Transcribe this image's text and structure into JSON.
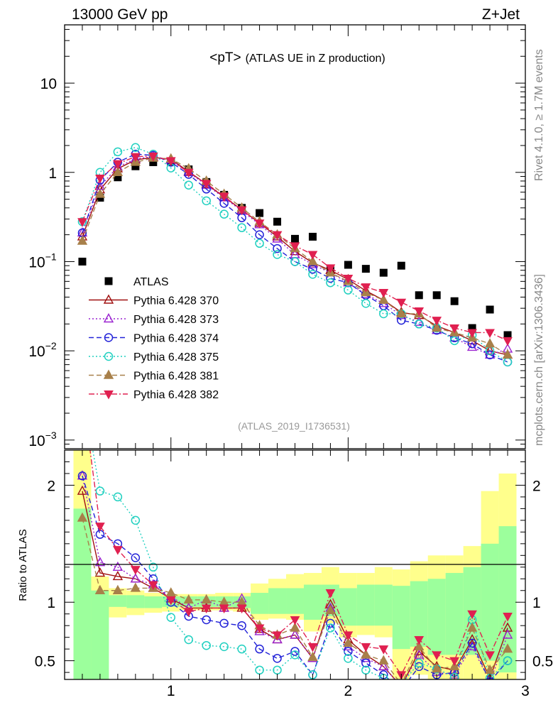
{
  "header": {
    "left": "13000 GeV pp",
    "right": "Z+Jet"
  },
  "side_text": {
    "rivet": "Rivet 4.1.0, ≥ 1.7M events",
    "mcplots": "mcplots.cern.ch [arXiv:1306.3436]"
  },
  "chart_data": [
    {
      "type": "line",
      "panel": "main",
      "title_main": "<pT>",
      "title_sub": "(ATLAS UE in Z production)",
      "analysis_tag": "(ATLAS_2019_I1736531)",
      "yscale": "log",
      "ylim": [
        0.0008,
        45
      ],
      "xlim": [
        0.4,
        3.0
      ],
      "yticks": [
        {
          "value": 10,
          "label": "10"
        },
        {
          "value": 1,
          "label": "1"
        },
        {
          "value": 0.1,
          "label": "10",
          "exp": "−1"
        },
        {
          "value": 0.01,
          "label": "10",
          "exp": "−2"
        },
        {
          "value": 0.001,
          "label": "10",
          "exp": "−3"
        }
      ],
      "x": [
        0.5,
        0.6,
        0.7,
        0.8,
        0.9,
        1.0,
        1.1,
        1.2,
        1.3,
        1.4,
        1.5,
        1.6,
        1.7,
        1.8,
        1.9,
        2.0,
        2.1,
        2.2,
        2.3,
        2.4,
        2.5,
        2.6,
        2.7,
        2.8,
        2.9
      ],
      "legend_position": "middle-left",
      "series": [
        {
          "name": "ATLAS",
          "color": "#000000",
          "marker": "square",
          "line": "none",
          "values": [
            0.1,
            0.52,
            0.88,
            1.17,
            1.3,
            1.32,
            1.08,
            0.78,
            0.56,
            0.4,
            0.35,
            0.28,
            0.18,
            0.19,
            0.08,
            0.092,
            0.083,
            0.075,
            0.09,
            0.042,
            0.042,
            0.036,
            0.018,
            0.029,
            0.015
          ]
        },
        {
          "name": "Pythia 6.428 370",
          "color": "#a01010",
          "marker": "triangle-open",
          "line": "solid",
          "values": [
            0.19,
            0.64,
            1.1,
            1.38,
            1.47,
            1.4,
            1.02,
            0.74,
            0.53,
            0.38,
            0.27,
            0.19,
            0.13,
            0.097,
            0.08,
            0.063,
            0.047,
            0.037,
            0.027,
            0.025,
            0.019,
            0.016,
            0.013,
            0.01,
            0.009
          ]
        },
        {
          "name": "Pythia 6.428 373",
          "color": "#9a22d0",
          "marker": "triangle-open",
          "line": "dotted",
          "values": [
            0.21,
            0.7,
            1.15,
            1.42,
            1.5,
            1.38,
            1.0,
            0.72,
            0.52,
            0.37,
            0.26,
            0.18,
            0.12,
            0.093,
            0.075,
            0.058,
            0.043,
            0.034,
            0.025,
            0.021,
            0.017,
            0.014,
            0.011,
            0.009,
            0.0105
          ]
        },
        {
          "name": "Pythia 6.428 374",
          "color": "#2222d8",
          "marker": "circle-open",
          "line": "dashed",
          "values": [
            0.21,
            0.82,
            1.3,
            1.6,
            1.55,
            1.3,
            0.95,
            0.65,
            0.45,
            0.31,
            0.2,
            0.14,
            0.1,
            0.082,
            0.065,
            0.058,
            0.042,
            0.032,
            0.022,
            0.02,
            0.017,
            0.014,
            0.012,
            0.009,
            0.0075
          ]
        },
        {
          "name": "Pythia 6.428 375",
          "color": "#20d0c0",
          "marker": "circle-open",
          "line": "dotted",
          "values": [
            0.28,
            1.0,
            1.7,
            1.9,
            1.6,
            1.12,
            0.72,
            0.48,
            0.34,
            0.24,
            0.16,
            0.12,
            0.1,
            0.072,
            0.058,
            0.048,
            0.034,
            0.026,
            0.026,
            0.02,
            0.018,
            0.013,
            0.015,
            0.01,
            0.0075
          ]
        },
        {
          "name": "Pythia 6.428 381",
          "color": "#a8804a",
          "marker": "triangle-filled",
          "line": "dashed",
          "values": [
            0.17,
            0.57,
            1.0,
            1.3,
            1.45,
            1.42,
            1.1,
            0.8,
            0.57,
            0.4,
            0.28,
            0.2,
            0.14,
            0.1,
            0.075,
            0.06,
            0.045,
            0.037,
            0.026,
            0.026,
            0.018,
            0.016,
            0.014,
            0.012,
            0.009
          ]
        },
        {
          "name": "Pythia 6.428 382",
          "color": "#e02050",
          "marker": "triangle-down-filled",
          "line": "dashdot",
          "values": [
            0.28,
            0.86,
            1.25,
            1.5,
            1.52,
            1.35,
            1.0,
            0.75,
            0.54,
            0.38,
            0.27,
            0.2,
            0.15,
            0.12,
            0.085,
            0.065,
            0.052,
            0.045,
            0.035,
            0.028,
            0.022,
            0.018,
            0.016,
            0.016,
            0.013
          ]
        }
      ]
    },
    {
      "type": "line",
      "panel": "ratio",
      "ylabel": "Ratio to ATLAS",
      "xlabel": "",
      "ylim": [
        0.34,
        2.3
      ],
      "xlim": [
        0.4,
        3.0
      ],
      "yticks": [
        {
          "value": 2,
          "label": "2"
        },
        {
          "value": 1,
          "label": "1"
        },
        {
          "value": 0.5,
          "label": "0.5"
        }
      ],
      "xticks": [
        {
          "value": 1,
          "label": "1"
        },
        {
          "value": 2,
          "label": "2"
        },
        {
          "value": 3,
          "label": "3"
        }
      ],
      "bands": {
        "yellow": {
          "color": "#ffff8c",
          "lower": [
            0.2,
            0.77,
            0.87,
            0.89,
            0.91,
            0.92,
            0.93,
            0.93,
            0.93,
            0.92,
            0.85,
            0.86,
            0.85,
            0.75,
            0.82,
            0.7,
            0.72,
            0.7,
            0.3,
            0.38,
            0.3,
            0.3,
            0.3,
            0.3,
            0.3
          ],
          "upper": [
            2.4,
            1.22,
            1.12,
            1.1,
            1.08,
            1.07,
            1.07,
            1.07,
            1.08,
            1.08,
            1.16,
            1.2,
            1.24,
            1.25,
            1.3,
            1.25,
            1.25,
            1.3,
            1.28,
            1.35,
            1.4,
            1.4,
            1.48,
            1.95,
            2.1
          ]
        },
        "green": {
          "color": "#9cff9c",
          "lower": [
            0.2,
            0.2,
            0.96,
            0.95,
            0.95,
            0.96,
            0.96,
            0.96,
            0.96,
            0.95,
            0.9,
            0.9,
            0.9,
            0.85,
            0.88,
            0.8,
            0.8,
            0.8,
            0.6,
            0.62,
            0.55,
            0.55,
            0.55,
            0.5,
            0.4
          ],
          "upper": [
            1.8,
            1.1,
            1.06,
            1.06,
            1.05,
            1.05,
            1.05,
            1.05,
            1.05,
            1.05,
            1.08,
            1.12,
            1.12,
            1.15,
            1.15,
            1.12,
            1.15,
            1.15,
            1.14,
            1.18,
            1.2,
            1.25,
            1.3,
            1.5,
            1.65
          ]
        }
      },
      "series": [
        {
          "name": "Pythia 6.428 370",
          "color": "#a01010",
          "values": [
            1.95,
            1.25,
            1.22,
            1.2,
            1.12,
            1.03,
            0.95,
            0.95,
            0.95,
            0.95,
            0.77,
            0.68,
            0.72,
            0.52,
            0.98,
            0.68,
            0.55,
            0.45,
            0.28,
            0.58,
            0.45,
            0.42,
            0.68,
            0.35,
            0.78
          ]
        },
        {
          "name": "Pythia 6.428 373",
          "color": "#9a22d0",
          "values": [
            2.08,
            1.34,
            1.3,
            1.2,
            1.15,
            1.05,
            0.95,
            1.02,
            0.95,
            1.03,
            0.75,
            0.68,
            0.72,
            0.52,
            0.95,
            0.62,
            0.52,
            0.45,
            0.28,
            0.55,
            0.4,
            0.38,
            0.62,
            0.32,
            0.72
          ]
        },
        {
          "name": "Pythia 6.428 374",
          "color": "#2222d8",
          "values": [
            2.08,
            1.58,
            1.5,
            1.38,
            1.2,
            1.0,
            0.88,
            0.85,
            0.82,
            0.8,
            0.6,
            0.52,
            0.58,
            0.38,
            0.82,
            0.58,
            0.48,
            0.38,
            0.25,
            0.45,
            0.38,
            0.4,
            0.65,
            0.32,
            0.5
          ]
        },
        {
          "name": "Pythia 6.428 375",
          "color": "#20d0c0",
          "values": [
            2.8,
            1.95,
            1.9,
            1.7,
            1.3,
            0.87,
            0.68,
            0.63,
            0.62,
            0.6,
            0.42,
            0.42,
            0.55,
            0.38,
            0.78,
            0.52,
            0.42,
            0.35,
            0.3,
            0.48,
            0.43,
            0.36,
            0.85,
            0.35,
            0.5
          ]
        },
        {
          "name": "Pythia 6.428 381",
          "color": "#a8804a",
          "values": [
            1.72,
            1.1,
            1.1,
            1.12,
            1.12,
            1.08,
            1.02,
            1.02,
            1.0,
            1.0,
            0.8,
            0.72,
            0.78,
            0.53,
            0.93,
            0.65,
            0.55,
            0.5,
            0.3,
            0.62,
            0.43,
            0.45,
            0.78,
            0.42,
            0.6
          ]
        },
        {
          "name": "Pythia 6.428 382",
          "color": "#e02050",
          "values": [
            2.8,
            1.65,
            1.45,
            1.28,
            1.15,
            1.02,
            0.92,
            0.95,
            0.95,
            0.95,
            0.78,
            0.72,
            0.85,
            0.62,
            1.08,
            0.72,
            0.62,
            0.6,
            0.38,
            0.68,
            0.55,
            0.5,
            0.9,
            0.55,
            0.88
          ]
        }
      ]
    }
  ]
}
